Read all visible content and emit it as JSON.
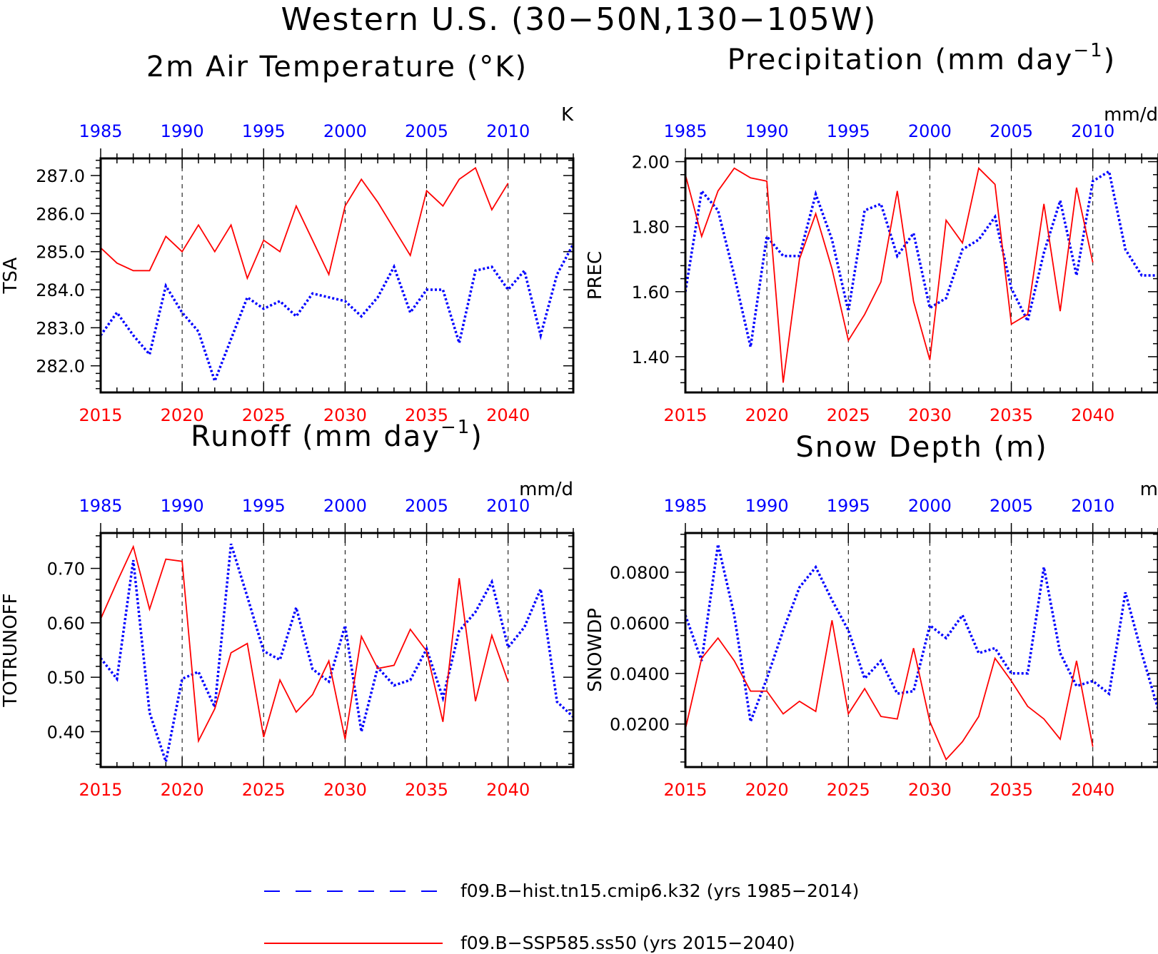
{
  "title": "Western U.S. (30−50N,130−105W)",
  "colors": {
    "hist": "#0000ff",
    "ssp": "#ff0000",
    "axis": "#000000"
  },
  "legend": [
    {
      "label": "f09.B−hist.tn15.cmip6.k32 (yrs 1985−2014)",
      "style": "dashed",
      "color": "#0000ff"
    },
    {
      "label": "f09.B−SSP585.ss50 (yrs 2015−2040)",
      "style": "solid",
      "color": "#ff0000"
    }
  ],
  "chart_data": [
    {
      "type": "line",
      "title": "2m Air Temperature (°K)",
      "ylabel": "TSA",
      "units": "K",
      "x_bottom_ticks": [
        "2015",
        "2020",
        "2025",
        "2030",
        "2035",
        "2040"
      ],
      "x_top_ticks": [
        "1985",
        "1990",
        "1995",
        "2000",
        "2005",
        "2010"
      ],
      "xlim": [
        2015,
        2044
      ],
      "ylim": [
        281.3,
        287.45
      ],
      "yticks": [
        282.0,
        283.0,
        284.0,
        285.0,
        286.0,
        287.0
      ],
      "ytick_labels": [
        "282.0",
        "283.0",
        "284.0",
        "285.0",
        "286.0",
        "287.0"
      ],
      "yminor": 0.2,
      "series": [
        {
          "name": "f09.B−hist.tn15.cmip6.k32",
          "style": "dotted",
          "x": [
            1985,
            1986,
            1987,
            1988,
            1989,
            1990,
            1991,
            1992,
            1993,
            1994,
            1995,
            1996,
            1997,
            1998,
            1999,
            2000,
            2001,
            2002,
            2003,
            2004,
            2005,
            2006,
            2007,
            2008,
            2009,
            2010,
            2011,
            2012,
            2013,
            2014
          ],
          "values": [
            282.8,
            283.4,
            282.8,
            282.3,
            284.1,
            283.4,
            282.9,
            281.6,
            282.7,
            283.8,
            283.5,
            283.7,
            283.3,
            283.9,
            283.8,
            283.7,
            283.3,
            283.8,
            284.6,
            283.4,
            284.0,
            284.0,
            282.6,
            284.5,
            284.6,
            284.0,
            284.5,
            282.8,
            284.4,
            285.2
          ]
        },
        {
          "name": "f09.B−SSP585.ss50",
          "style": "solid",
          "x": [
            2015,
            2016,
            2017,
            2018,
            2019,
            2020,
            2021,
            2022,
            2023,
            2024,
            2025,
            2026,
            2027,
            2028,
            2029,
            2030,
            2031,
            2032,
            2033,
            2034,
            2035,
            2036,
            2037,
            2038,
            2039,
            2040
          ],
          "values": [
            285.1,
            284.7,
            284.5,
            284.5,
            285.4,
            285.0,
            285.7,
            285.0,
            285.7,
            284.3,
            285.3,
            285.0,
            286.2,
            285.3,
            284.4,
            286.2,
            286.9,
            286.3,
            285.6,
            284.9,
            286.6,
            286.2,
            286.9,
            287.2,
            286.1,
            286.8
          ]
        }
      ]
    },
    {
      "type": "line",
      "title": "Precipitation (mm day",
      "title_sup": "−1",
      "title_end": ")",
      "ylabel": "PREC",
      "units": "mm/d",
      "x_bottom_ticks": [
        "2015",
        "2020",
        "2025",
        "2030",
        "2035",
        "2040"
      ],
      "x_top_ticks": [
        "1985",
        "1990",
        "1995",
        "2000",
        "2005",
        "2010"
      ],
      "xlim": [
        2015,
        2044
      ],
      "ylim": [
        1.29,
        2.01
      ],
      "yticks": [
        1.4,
        1.6,
        1.8,
        2.0
      ],
      "ytick_labels": [
        "1.40",
        "1.60",
        "1.80",
        "2.00"
      ],
      "yminor": 0.04,
      "series": [
        {
          "name": "f09.B−hist.tn15.cmip6.k32",
          "style": "dotted",
          "x": [
            1985,
            1986,
            1987,
            1988,
            1989,
            1990,
            1991,
            1992,
            1993,
            1994,
            1995,
            1996,
            1997,
            1998,
            1999,
            2000,
            2001,
            2002,
            2003,
            2004,
            2005,
            2006,
            2007,
            2008,
            2009,
            2010,
            2011,
            2012,
            2013,
            2014
          ],
          "values": [
            1.6,
            1.91,
            1.85,
            1.65,
            1.43,
            1.77,
            1.71,
            1.71,
            1.9,
            1.76,
            1.54,
            1.85,
            1.87,
            1.71,
            1.78,
            1.55,
            1.58,
            1.73,
            1.76,
            1.83,
            1.61,
            1.51,
            1.72,
            1.88,
            1.65,
            1.94,
            1.97,
            1.73,
            1.65,
            1.65
          ]
        },
        {
          "name": "f09.B−SSP585.ss50",
          "style": "solid",
          "x": [
            2015,
            2016,
            2017,
            2018,
            2019,
            2020,
            2021,
            2022,
            2023,
            2024,
            2025,
            2026,
            2027,
            2028,
            2029,
            2030,
            2031,
            2032,
            2033,
            2034,
            2035,
            2036,
            2037,
            2038,
            2039,
            2040
          ],
          "values": [
            1.96,
            1.77,
            1.91,
            1.98,
            1.95,
            1.94,
            1.32,
            1.7,
            1.84,
            1.67,
            1.45,
            1.53,
            1.63,
            1.91,
            1.57,
            1.39,
            1.82,
            1.75,
            1.98,
            1.93,
            1.5,
            1.53,
            1.87,
            1.54,
            1.92,
            1.69
          ]
        }
      ]
    },
    {
      "type": "line",
      "title": "Runoff (mm day",
      "title_sup": "−1",
      "title_end": ")",
      "ylabel": "TOTRUNOFF",
      "units": "mm/d",
      "x_bottom_ticks": [
        "2015",
        "2020",
        "2025",
        "2030",
        "2035",
        "2040"
      ],
      "x_top_ticks": [
        "1985",
        "1990",
        "1995",
        "2000",
        "2005",
        "2010"
      ],
      "xlim": [
        2015,
        2044
      ],
      "ylim": [
        0.335,
        0.765
      ],
      "yticks": [
        0.4,
        0.5,
        0.6,
        0.7
      ],
      "ytick_labels": [
        "0.40",
        "0.50",
        "0.60",
        "0.70"
      ],
      "yminor": 0.02,
      "series": [
        {
          "name": "f09.B−hist.tn15.cmip6.k32",
          "style": "dotted",
          "x": [
            1985,
            1986,
            1987,
            1988,
            1989,
            1990,
            1991,
            1992,
            1993,
            1994,
            1995,
            1996,
            1997,
            1998,
            1999,
            2000,
            2001,
            2002,
            2003,
            2004,
            2005,
            2006,
            2007,
            2008,
            2009,
            2010,
            2011,
            2012,
            2013,
            2014
          ],
          "values": [
            0.535,
            0.497,
            0.715,
            0.435,
            0.345,
            0.497,
            0.51,
            0.445,
            0.745,
            0.648,
            0.548,
            0.532,
            0.628,
            0.515,
            0.492,
            0.595,
            0.4,
            0.518,
            0.485,
            0.495,
            0.552,
            0.462,
            0.585,
            0.62,
            0.675,
            0.555,
            0.592,
            0.662,
            0.455,
            0.427
          ]
        },
        {
          "name": "f09.B−SSP585.ss50",
          "style": "solid",
          "x": [
            2015,
            2016,
            2017,
            2018,
            2019,
            2020,
            2021,
            2022,
            2023,
            2024,
            2025,
            2026,
            2027,
            2028,
            2029,
            2030,
            2031,
            2032,
            2033,
            2034,
            2035,
            2036,
            2037,
            2038,
            2039,
            2040
          ],
          "values": [
            0.607,
            0.675,
            0.74,
            0.625,
            0.717,
            0.713,
            0.383,
            0.442,
            0.545,
            0.562,
            0.39,
            0.495,
            0.436,
            0.468,
            0.53,
            0.386,
            0.575,
            0.516,
            0.522,
            0.588,
            0.548,
            0.418,
            0.682,
            0.456,
            0.577,
            0.492
          ]
        }
      ]
    },
    {
      "type": "line",
      "title": "Snow Depth (m)",
      "ylabel": "SNOWDP",
      "units": "m",
      "x_bottom_ticks": [
        "2015",
        "2020",
        "2025",
        "2030",
        "2035",
        "2040"
      ],
      "x_top_ticks": [
        "1985",
        "1990",
        "1995",
        "2000",
        "2005",
        "2010"
      ],
      "xlim": [
        2015,
        2044
      ],
      "ylim": [
        0.003,
        0.0955
      ],
      "yticks": [
        0.02,
        0.04,
        0.06,
        0.08
      ],
      "ytick_labels": [
        "0.0200",
        "0.0400",
        "0.0600",
        "0.0800"
      ],
      "yminor": 0.005,
      "series": [
        {
          "name": "f09.B−hist.tn15.cmip6.k32",
          "style": "dotted",
          "x": [
            1985,
            1986,
            1987,
            1988,
            1989,
            1990,
            1991,
            1992,
            1993,
            1994,
            1995,
            1996,
            1997,
            1998,
            1999,
            2000,
            2001,
            2002,
            2003,
            2004,
            2005,
            2006,
            2007,
            2008,
            2009,
            2010,
            2011,
            2012,
            2013,
            2014
          ],
          "values": [
            0.063,
            0.045,
            0.091,
            0.063,
            0.021,
            0.038,
            0.057,
            0.074,
            0.082,
            0.069,
            0.057,
            0.038,
            0.045,
            0.032,
            0.033,
            0.059,
            0.054,
            0.063,
            0.048,
            0.05,
            0.04,
            0.04,
            0.082,
            0.048,
            0.035,
            0.037,
            0.032,
            0.072,
            0.048,
            0.026
          ]
        },
        {
          "name": "f09.B−SSP585.ss50",
          "style": "solid",
          "x": [
            2015,
            2016,
            2017,
            2018,
            2019,
            2020,
            2021,
            2022,
            2023,
            2024,
            2025,
            2026,
            2027,
            2028,
            2029,
            2030,
            2031,
            2032,
            2033,
            2034,
            2035,
            2036,
            2037,
            2038,
            2039,
            2040
          ],
          "values": [
            0.018,
            0.046,
            0.054,
            0.045,
            0.033,
            0.033,
            0.024,
            0.029,
            0.025,
            0.061,
            0.024,
            0.034,
            0.023,
            0.022,
            0.05,
            0.021,
            0.006,
            0.013,
            0.023,
            0.046,
            0.037,
            0.027,
            0.022,
            0.014,
            0.045,
            0.011
          ]
        }
      ]
    }
  ]
}
